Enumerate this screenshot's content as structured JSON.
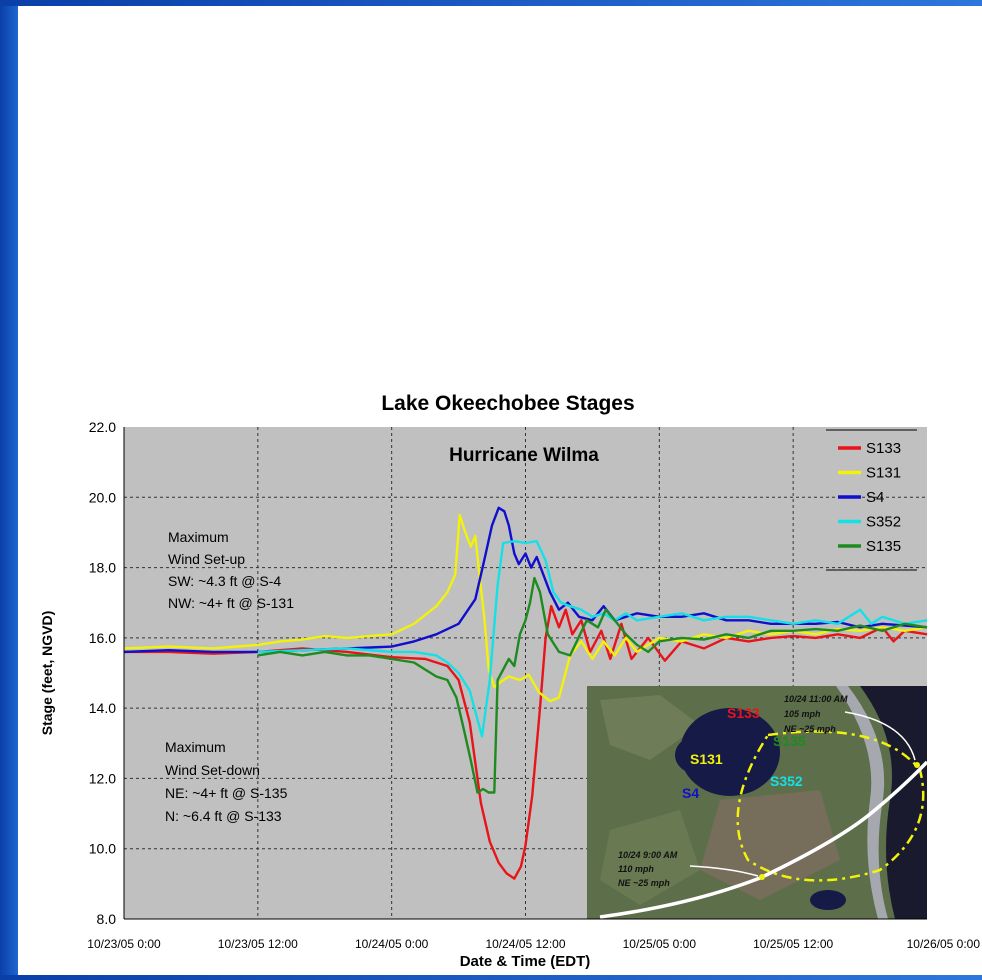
{
  "chart_data": {
    "type": "line",
    "title": "Lake Okeechobee Stages",
    "subtitle": "Hurricane Wilma",
    "xlabel": "Date & Time (EDT)",
    "ylabel": "Stage (feet, NGVD)",
    "ylim": [
      8.0,
      22.0
    ],
    "xlim": [
      0,
      72
    ],
    "y_ticks": [
      "8.0",
      "10.0",
      "12.0",
      "14.0",
      "16.0",
      "18.0",
      "20.0",
      "22.0"
    ],
    "x_ticks": [
      {
        "x": 0,
        "label": "10/23/05 0:00"
      },
      {
        "x": 12,
        "label": "10/23/05 12:00"
      },
      {
        "x": 24,
        "label": "10/24/05 0:00"
      },
      {
        "x": 36,
        "label": "10/24/05 12:00"
      },
      {
        "x": 48,
        "label": "10/25/05 0:00"
      },
      {
        "x": 60,
        "label": "10/25/05 12:00"
      },
      {
        "x": 72,
        "label": "10/26/05 0:00"
      }
    ],
    "x_unit": "hours after 10/23/05 0:00",
    "grid": true,
    "legend_position": "top-right",
    "series": [
      {
        "name": "S133",
        "color": "#e8141a",
        "points": [
          [
            0,
            15.6
          ],
          [
            4,
            15.6
          ],
          [
            8,
            15.55
          ],
          [
            12,
            15.6
          ],
          [
            16,
            15.7
          ],
          [
            20,
            15.6
          ],
          [
            24,
            15.45
          ],
          [
            27,
            15.4
          ],
          [
            29,
            15.2
          ],
          [
            30,
            14.8
          ],
          [
            31,
            13.6
          ],
          [
            32,
            11.3
          ],
          [
            32.8,
            10.2
          ],
          [
            33.6,
            9.6
          ],
          [
            34.3,
            9.3
          ],
          [
            35,
            9.15
          ],
          [
            35.6,
            9.5
          ],
          [
            36,
            10.1
          ],
          [
            36.6,
            11.5
          ],
          [
            37.3,
            14.0
          ],
          [
            37.8,
            16.0
          ],
          [
            38.3,
            16.9
          ],
          [
            39,
            16.3
          ],
          [
            39.6,
            16.8
          ],
          [
            40.2,
            16.1
          ],
          [
            41,
            16.5
          ],
          [
            41.8,
            15.6
          ],
          [
            42.8,
            16.2
          ],
          [
            43.6,
            15.4
          ],
          [
            44.6,
            16.4
          ],
          [
            45.5,
            15.4
          ],
          [
            47,
            16.0
          ],
          [
            48.5,
            15.35
          ],
          [
            50,
            15.9
          ],
          [
            52,
            15.7
          ],
          [
            54,
            16.0
          ],
          [
            56,
            15.9
          ],
          [
            58,
            16.0
          ],
          [
            60,
            16.05
          ],
          [
            62,
            16.0
          ],
          [
            64,
            16.1
          ],
          [
            66,
            16.0
          ],
          [
            68,
            16.3
          ],
          [
            69,
            15.9
          ],
          [
            70,
            16.2
          ],
          [
            72,
            16.1
          ]
        ]
      },
      {
        "name": "S131",
        "color": "#f2f20a",
        "points": [
          [
            0,
            15.7
          ],
          [
            4,
            15.75
          ],
          [
            8,
            15.7
          ],
          [
            12,
            15.8
          ],
          [
            14,
            15.9
          ],
          [
            16,
            15.95
          ],
          [
            18,
            16.05
          ],
          [
            20,
            16.0
          ],
          [
            22,
            16.05
          ],
          [
            24,
            16.1
          ],
          [
            26,
            16.4
          ],
          [
            28,
            16.9
          ],
          [
            29,
            17.3
          ],
          [
            29.7,
            17.8
          ],
          [
            30.1,
            19.5
          ],
          [
            30.6,
            19.0
          ],
          [
            31.1,
            18.6
          ],
          [
            31.5,
            18.9
          ],
          [
            31.9,
            17.7
          ],
          [
            32.3,
            16.6
          ],
          [
            32.7,
            15.1
          ],
          [
            33.2,
            14.6
          ],
          [
            33.8,
            14.75
          ],
          [
            34.5,
            14.9
          ],
          [
            35.5,
            14.8
          ],
          [
            36.3,
            14.95
          ],
          [
            37.2,
            14.45
          ],
          [
            38.2,
            14.2
          ],
          [
            39,
            14.3
          ],
          [
            40,
            15.5
          ],
          [
            41,
            15.9
          ],
          [
            42,
            15.4
          ],
          [
            43,
            15.9
          ],
          [
            44,
            15.5
          ],
          [
            45,
            16.0
          ],
          [
            46,
            15.6
          ],
          [
            48,
            16.0
          ],
          [
            50,
            15.9
          ],
          [
            52,
            16.1
          ],
          [
            54,
            16.0
          ],
          [
            56,
            16.2
          ],
          [
            58,
            16.1
          ],
          [
            60,
            16.2
          ],
          [
            62,
            16.1
          ],
          [
            64,
            16.25
          ],
          [
            66,
            16.2
          ],
          [
            68,
            16.3
          ],
          [
            70,
            16.2
          ],
          [
            72,
            16.3
          ]
        ]
      },
      {
        "name": "S4",
        "color": "#1010cc",
        "points": [
          [
            0,
            15.6
          ],
          [
            4,
            15.65
          ],
          [
            8,
            15.6
          ],
          [
            12,
            15.6
          ],
          [
            16,
            15.65
          ],
          [
            20,
            15.7
          ],
          [
            24,
            15.75
          ],
          [
            26,
            15.9
          ],
          [
            28,
            16.1
          ],
          [
            30,
            16.4
          ],
          [
            31.5,
            17.1
          ],
          [
            32.3,
            18.2
          ],
          [
            33,
            19.2
          ],
          [
            33.6,
            19.7
          ],
          [
            34.1,
            19.6
          ],
          [
            34.5,
            19.2
          ],
          [
            35,
            18.4
          ],
          [
            35.4,
            18.1
          ],
          [
            36,
            18.4
          ],
          [
            36.5,
            18.0
          ],
          [
            37,
            18.3
          ],
          [
            37.6,
            17.8
          ],
          [
            38.2,
            17.3
          ],
          [
            39,
            16.8
          ],
          [
            39.8,
            17.0
          ],
          [
            40.8,
            16.6
          ],
          [
            42,
            16.5
          ],
          [
            43,
            16.9
          ],
          [
            44,
            16.5
          ],
          [
            46,
            16.7
          ],
          [
            48,
            16.6
          ],
          [
            50,
            16.6
          ],
          [
            52,
            16.7
          ],
          [
            54,
            16.5
          ],
          [
            56,
            16.5
          ],
          [
            58,
            16.4
          ],
          [
            60,
            16.4
          ],
          [
            62,
            16.4
          ],
          [
            64,
            16.45
          ],
          [
            66,
            16.3
          ],
          [
            68,
            16.4
          ],
          [
            70,
            16.35
          ],
          [
            72,
            16.3
          ]
        ]
      },
      {
        "name": "S352",
        "color": "#14e0e6",
        "points": [
          [
            12,
            15.6
          ],
          [
            16,
            15.65
          ],
          [
            20,
            15.7
          ],
          [
            24,
            15.6
          ],
          [
            26,
            15.6
          ],
          [
            28,
            15.5
          ],
          [
            29,
            15.3
          ],
          [
            30,
            15.0
          ],
          [
            31,
            14.5
          ],
          [
            32.1,
            13.2
          ],
          [
            32.8,
            14.8
          ],
          [
            33.5,
            17.5
          ],
          [
            34,
            18.7
          ],
          [
            35,
            18.75
          ],
          [
            36,
            18.7
          ],
          [
            37,
            18.75
          ],
          [
            37.8,
            18.2
          ],
          [
            38.5,
            17.3
          ],
          [
            39.2,
            17.0
          ],
          [
            40,
            16.9
          ],
          [
            41,
            16.8
          ],
          [
            42,
            16.6
          ],
          [
            43,
            16.7
          ],
          [
            44,
            16.5
          ],
          [
            45,
            16.7
          ],
          [
            46,
            16.5
          ],
          [
            48,
            16.6
          ],
          [
            50,
            16.7
          ],
          [
            52,
            16.5
          ],
          [
            54,
            16.6
          ],
          [
            56,
            16.6
          ],
          [
            58,
            16.5
          ],
          [
            60,
            16.4
          ],
          [
            62,
            16.5
          ],
          [
            64,
            16.4
          ],
          [
            66,
            16.8
          ],
          [
            67,
            16.4
          ],
          [
            68,
            16.6
          ],
          [
            70,
            16.4
          ],
          [
            72,
            16.5
          ]
        ]
      },
      {
        "name": "S135",
        "color": "#1f8a1f",
        "points": [
          [
            12,
            15.5
          ],
          [
            14,
            15.6
          ],
          [
            16,
            15.5
          ],
          [
            18,
            15.6
          ],
          [
            20,
            15.5
          ],
          [
            22,
            15.5
          ],
          [
            24,
            15.4
          ],
          [
            26,
            15.3
          ],
          [
            27,
            15.1
          ],
          [
            28,
            14.9
          ],
          [
            29,
            14.8
          ],
          [
            29.8,
            14.3
          ],
          [
            30.4,
            13.5
          ],
          [
            31.1,
            12.5
          ],
          [
            31.7,
            11.6
          ],
          [
            32.2,
            11.7
          ],
          [
            32.7,
            11.6
          ],
          [
            33.2,
            11.6
          ],
          [
            33.5,
            14.8
          ],
          [
            34,
            15.1
          ],
          [
            34.5,
            15.4
          ],
          [
            35,
            15.2
          ],
          [
            35.5,
            16.1
          ],
          [
            36,
            16.5
          ],
          [
            36.4,
            17.0
          ],
          [
            36.8,
            17.7
          ],
          [
            37.3,
            17.3
          ],
          [
            38,
            16.1
          ],
          [
            39,
            15.6
          ],
          [
            40,
            15.5
          ],
          [
            41.5,
            16.5
          ],
          [
            42.5,
            16.3
          ],
          [
            43.2,
            16.8
          ],
          [
            44,
            16.5
          ],
          [
            45,
            16.1
          ],
          [
            46,
            15.8
          ],
          [
            47,
            15.6
          ],
          [
            48,
            15.9
          ],
          [
            50,
            16.0
          ],
          [
            52,
            15.95
          ],
          [
            54,
            16.1
          ],
          [
            56,
            16.0
          ],
          [
            58,
            16.2
          ],
          [
            60,
            16.2
          ],
          [
            62,
            16.25
          ],
          [
            64,
            16.2
          ],
          [
            66,
            16.35
          ],
          [
            68,
            16.2
          ],
          [
            70,
            16.4
          ],
          [
            72,
            16.3
          ]
        ]
      }
    ],
    "annotations": [
      {
        "id": "setup",
        "lines": [
          "Maximum",
          "Wind Set-up",
          "SW: ~4.3 ft @ S-4",
          "NW: ~4+ ft @ S-131"
        ]
      },
      {
        "id": "setdown",
        "lines": [
          "Maximum",
          "Wind Set-down",
          "NE: ~4+ ft @ S-135",
          "N: ~6.4 ft @ S-133"
        ]
      }
    ],
    "inset": {
      "station_labels": [
        {
          "text": "S133",
          "color": "#e8141a"
        },
        {
          "text": "S131",
          "color": "#f2f20a"
        },
        {
          "text": "S135",
          "color": "#1f8a1f"
        },
        {
          "text": "S352",
          "color": "#14e0e6"
        },
        {
          "text": "S4",
          "color": "#1010cc"
        }
      ],
      "storm_labels": [
        {
          "lines": [
            "10/24 11:00 AM",
            "105 mph",
            "NE ~25 mph"
          ]
        },
        {
          "lines": [
            "10/24 9:00 AM",
            "110 mph",
            "NE ~25 mph"
          ]
        }
      ]
    }
  }
}
